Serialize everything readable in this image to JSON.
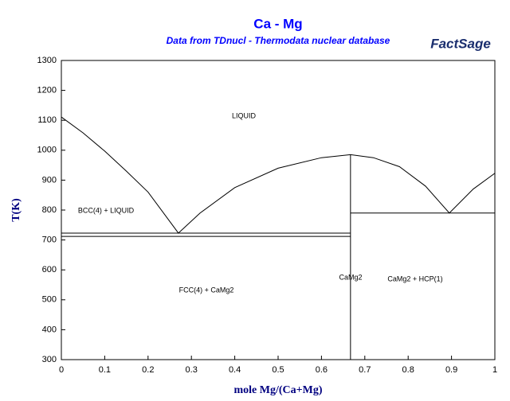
{
  "chart_data": {
    "type": "line",
    "title": "Ca - Mg",
    "subtitle": "Data from TDnucl - Thermodata nuclear database",
    "logo": "FactSage",
    "x_label": "mole Mg/(Ca+Mg)",
    "y_label": "T(K)",
    "xlim": [
      0,
      1
    ],
    "ylim": [
      300,
      1300
    ],
    "xticks": [
      0,
      0.1,
      0.2,
      0.3,
      0.4,
      0.5,
      0.6,
      0.7,
      0.8,
      0.9,
      1
    ],
    "yticks": [
      300,
      400,
      500,
      600,
      700,
      800,
      900,
      1000,
      1100,
      1200,
      1300
    ],
    "color": "#000000",
    "series": [
      {
        "x": [
          0,
          0.05,
          0.1,
          0.15,
          0.2,
          0.27,
          0.32,
          0.4,
          0.5,
          0.6,
          0.667,
          0.72,
          0.78,
          0.84,
          0.895,
          0.95,
          1
        ],
        "values": [
          1111,
          1058,
          997,
          930,
          860,
          723,
          790,
          875,
          940,
          975,
          985,
          975,
          945,
          880,
          790,
          870,
          923
        ]
      },
      {
        "x": [
          0,
          0.667
        ],
        "values": [
          723,
          723
        ]
      },
      {
        "x": [
          0,
          0.667
        ],
        "values": [
          712,
          712
        ]
      },
      {
        "x": [
          0.667,
          1
        ],
        "values": [
          790,
          790
        ]
      },
      {
        "x": [
          0.667,
          0.667
        ],
        "values": [
          300,
          985
        ]
      }
    ],
    "annotations": [
      "LIQUID",
      "BCC(4) + LIQUID",
      "FCC(4) + CaMg2",
      "CaMg2",
      "CaMg2 + HCP(1)"
    ]
  }
}
